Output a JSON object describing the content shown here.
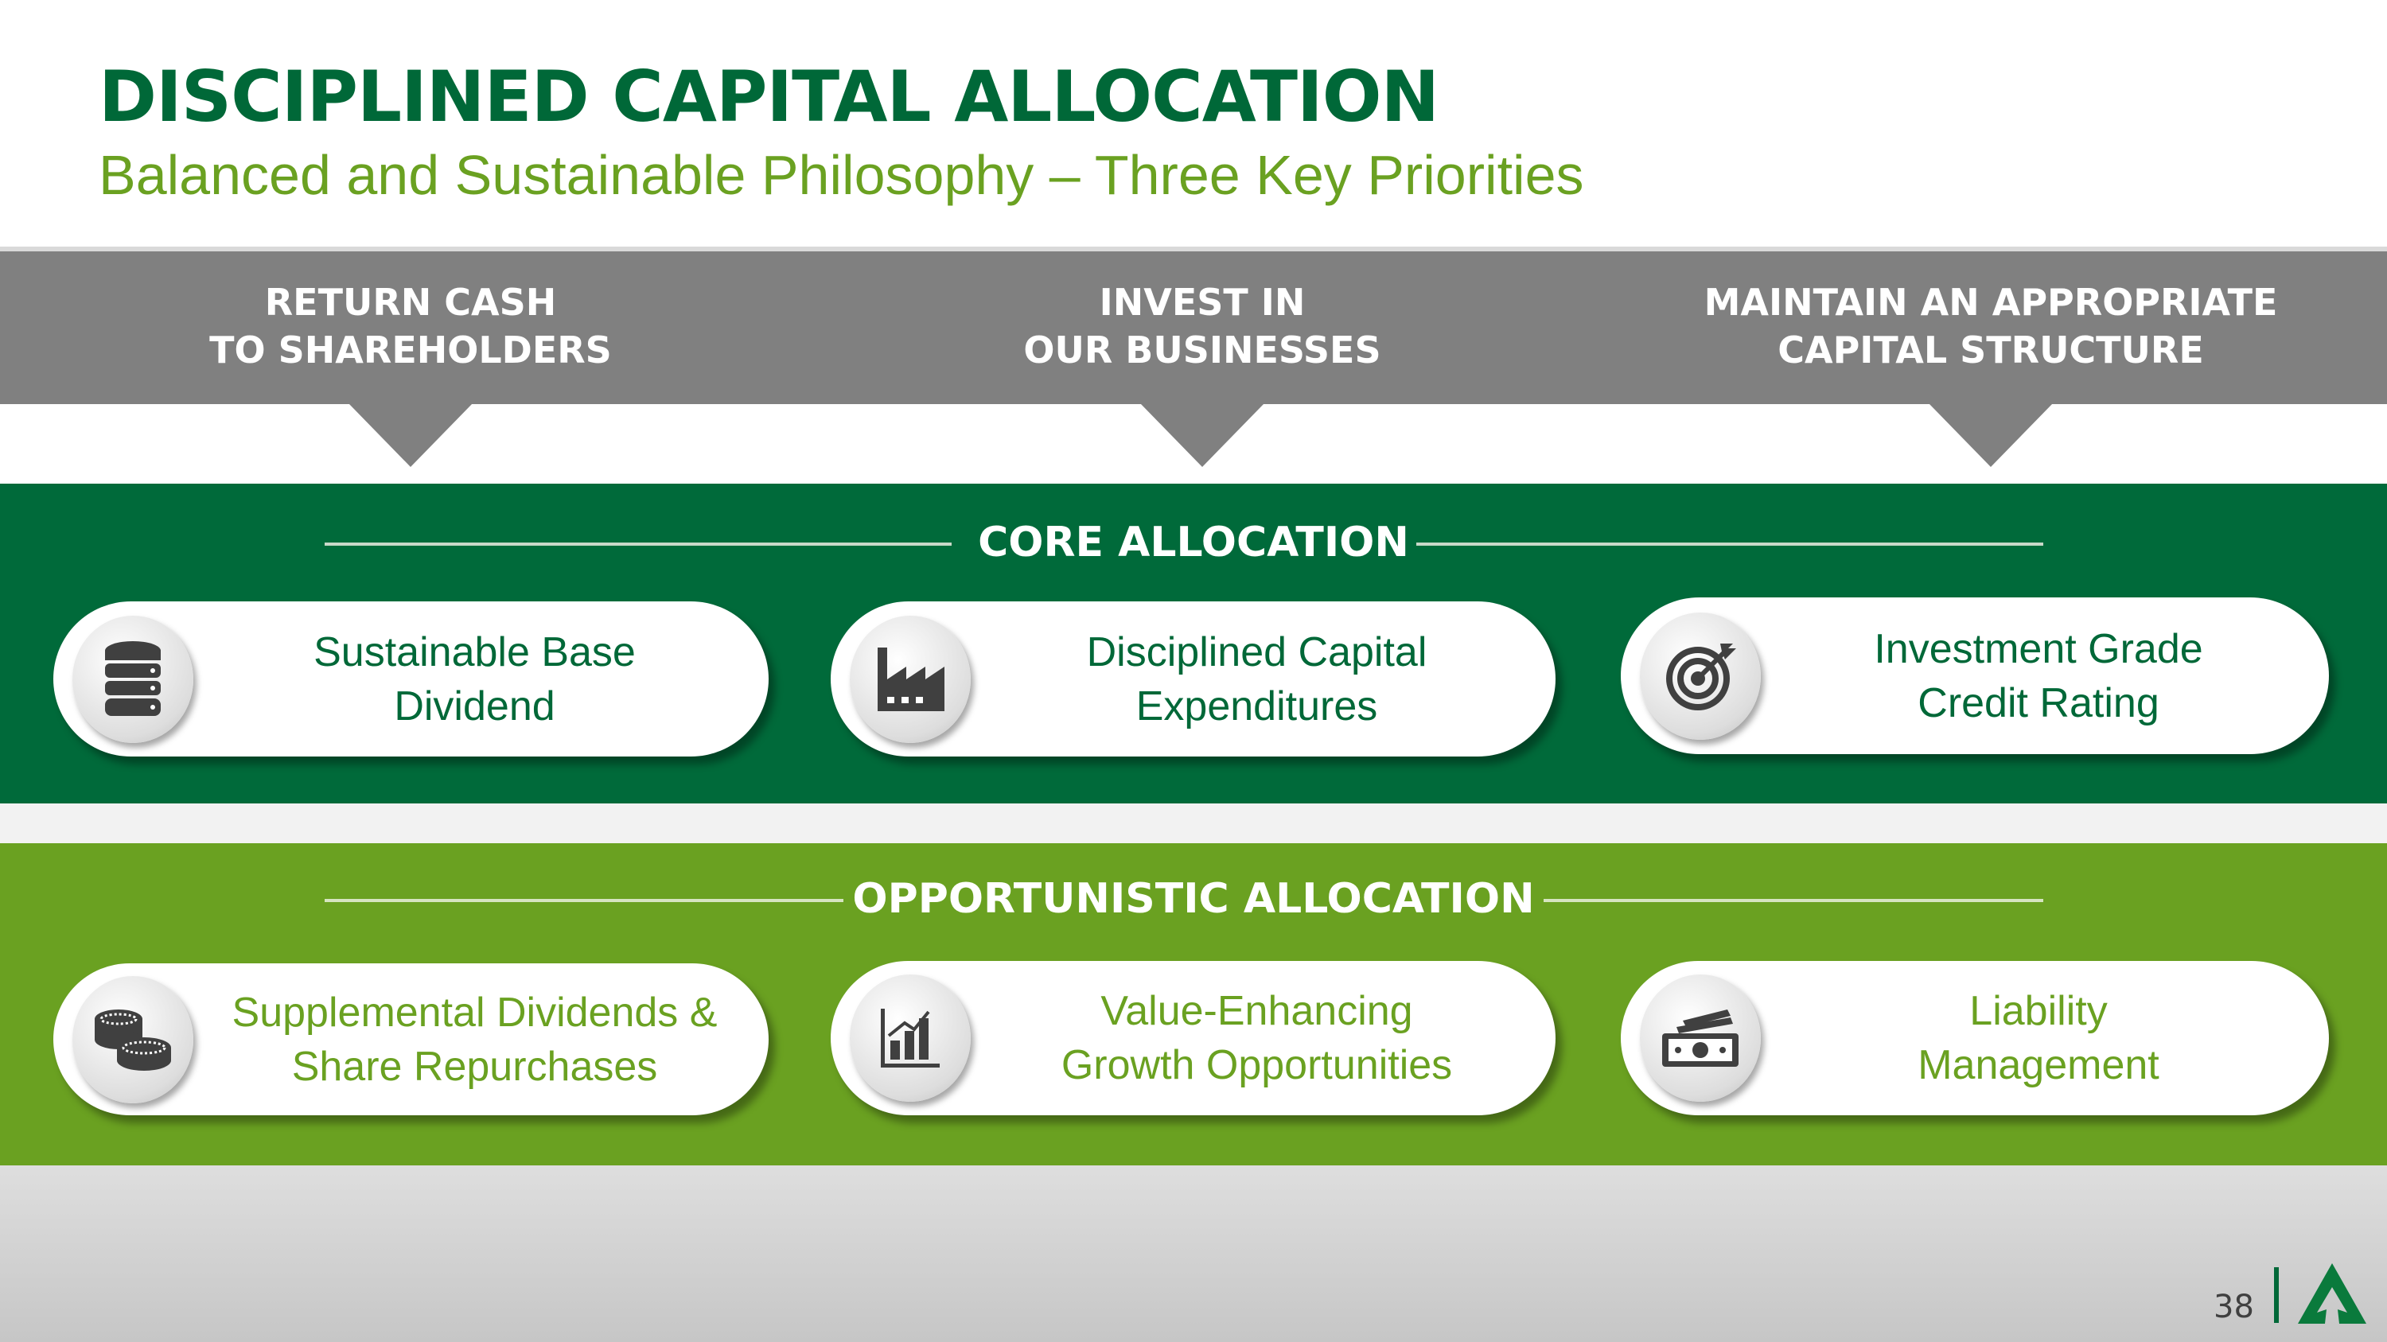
{
  "title": "DISCIPLINED CAPITAL ALLOCATION",
  "subtitle": "Balanced and Sustainable Philosophy – Three Key Priorities",
  "priorities": [
    {
      "line1": "RETURN CASH",
      "line2": "TO SHAREHOLDERS"
    },
    {
      "line1": "INVEST IN",
      "line2": "OUR BUSINESSES"
    },
    {
      "line1": "MAINTAIN AN APPROPRIATE",
      "line2": "CAPITAL STRUCTURE"
    }
  ],
  "core": {
    "title": "CORE ALLOCATION",
    "items": [
      {
        "icon": "database-stack-icon",
        "line1": "Sustainable Base",
        "line2": "Dividend"
      },
      {
        "icon": "factory-icon",
        "line1": "Disciplined Capital",
        "line2": "Expenditures"
      },
      {
        "icon": "target-icon",
        "line1": "Investment Grade",
        "line2": "Credit Rating"
      }
    ]
  },
  "opportunistic": {
    "title": "OPPORTUNISTIC ALLOCATION",
    "items": [
      {
        "icon": "coins-icon",
        "line1": "Supplemental Dividends &",
        "line2": "Share Repurchases"
      },
      {
        "icon": "bar-chart-icon",
        "line1": "Value-Enhancing",
        "line2": "Growth Opportunities"
      },
      {
        "icon": "cash-icon",
        "line1": "Liability",
        "line2": "Management"
      }
    ]
  },
  "page_number": "38",
  "colors": {
    "dark_green": "#006a3a",
    "light_green": "#6aa121",
    "gray": "#808080"
  }
}
